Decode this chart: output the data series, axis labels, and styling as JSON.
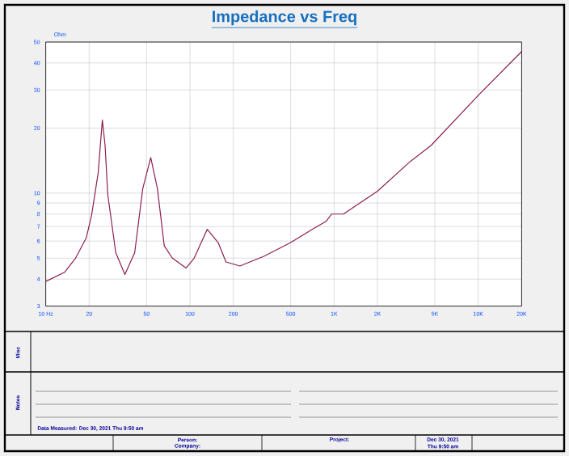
{
  "chart_data": {
    "type": "line",
    "title": "Impedance vs Freq",
    "ylabel": "Ohm",
    "log": "xy",
    "grid": true,
    "xlim": [
      10,
      20000
    ],
    "ylim": [
      3,
      50
    ],
    "xticks": [
      {
        "value": 10,
        "label": "10 Hz"
      },
      20,
      50,
      100,
      200,
      500,
      {
        "value": 1000,
        "label": "1K"
      },
      {
        "value": 2000,
        "label": "2K"
      },
      {
        "value": 5000,
        "label": "5K"
      },
      {
        "value": 10000,
        "label": "10K"
      },
      {
        "value": 20000,
        "label": "20K"
      }
    ],
    "yticks": [
      3,
      4,
      5,
      6,
      7,
      8,
      9,
      10,
      20,
      30,
      40,
      50
    ],
    "series": [
      {
        "color": "#8b1f4f",
        "x": [
          10,
          13.5,
          16.1,
          19.1,
          20.8,
          23.1,
          24.7,
          25.8,
          26.9,
          30.6,
          35.4,
          41.4,
          47.1,
          53.5,
          59.5,
          66.4,
          75.6,
          94,
          107,
          132,
          157,
          178,
          222,
          326,
          500,
          708,
          880,
          960,
          1160,
          2000,
          3330,
          4700,
          10200,
          20000
        ],
        "values": [
          3.9,
          4.3,
          5.0,
          6.2,
          7.9,
          12.4,
          21.8,
          16.6,
          9.9,
          5.3,
          4.2,
          5.3,
          10.5,
          14.6,
          10.5,
          5.7,
          5.0,
          4.5,
          5.0,
          6.8,
          5.9,
          4.8,
          4.6,
          5.1,
          5.9,
          6.8,
          7.4,
          8.0,
          8.0,
          10.2,
          13.9,
          16.6,
          28.7,
          45.2
        ]
      }
    ],
    "annotations": [
      "Misc",
      "Notes",
      "Data Measured: Dec 30, 2021 Thu 9:50 am",
      "Person:",
      "Company:",
      "Project:",
      "Dec 30, 2021",
      "Thu 9:50 am"
    ]
  }
}
